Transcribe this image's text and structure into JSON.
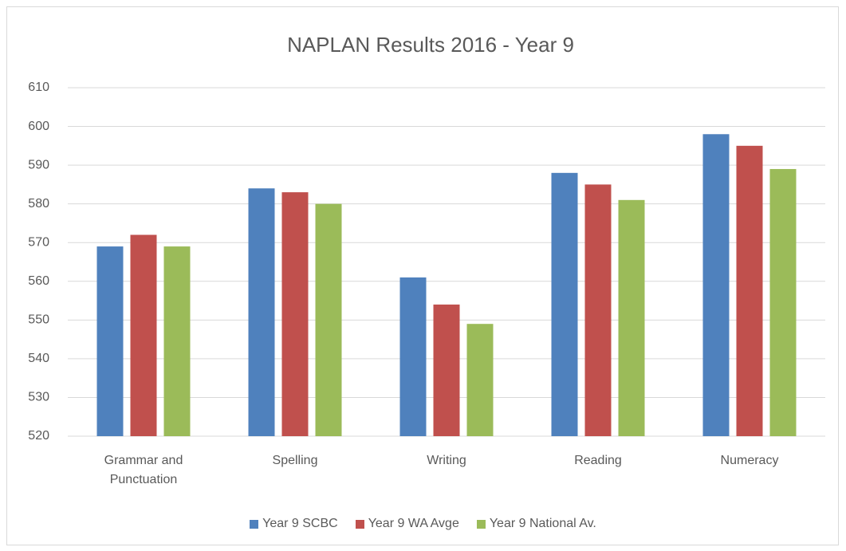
{
  "chart_data": {
    "type": "bar",
    "title": "NAPLAN Results 2016 - Year 9",
    "categories": [
      "Grammar and Punctuation",
      "Spelling",
      "Writing",
      "Reading",
      "Numeracy"
    ],
    "series": [
      {
        "name": "Year 9 SCBC",
        "color": "#4f81bd",
        "values": [
          569,
          584,
          561,
          588,
          598
        ]
      },
      {
        "name": "Year 9 WA Avge",
        "color": "#c0504d",
        "values": [
          572,
          583,
          554,
          585,
          595
        ]
      },
      {
        "name": "Year 9 National Av.",
        "color": "#9bbb59",
        "values": [
          569,
          580,
          549,
          581,
          589
        ]
      }
    ],
    "ylim": [
      520,
      610
    ],
    "yticks": [
      520,
      530,
      540,
      550,
      560,
      570,
      580,
      590,
      600,
      610
    ],
    "grid": true,
    "legend": "bottom"
  }
}
